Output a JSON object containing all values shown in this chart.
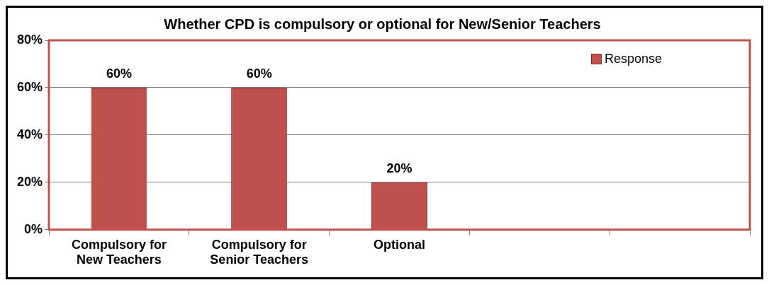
{
  "chart_data": {
    "type": "bar",
    "title": "Whether CPD is compulsory or optional for New/Senior Teachers",
    "categories": [
      "Compulsory for New Teachers",
      "Compulsory for Senior Teachers",
      "Optional",
      null,
      null
    ],
    "series": [
      {
        "name": "Response",
        "color": "#c0504d",
        "values": [
          60,
          60,
          20,
          null,
          null
        ],
        "value_labels": [
          "60%",
          "60%",
          "20%",
          null,
          null
        ]
      }
    ],
    "ylim": [
      0,
      80
    ],
    "yticks": [
      {
        "value": 0,
        "label": "0%"
      },
      {
        "value": 20,
        "label": "20%"
      },
      {
        "value": 40,
        "label": "40%"
      },
      {
        "value": 60,
        "label": "60%"
      },
      {
        "value": 80,
        "label": "80%"
      }
    ],
    "grid": "y",
    "legend": "top right"
  }
}
